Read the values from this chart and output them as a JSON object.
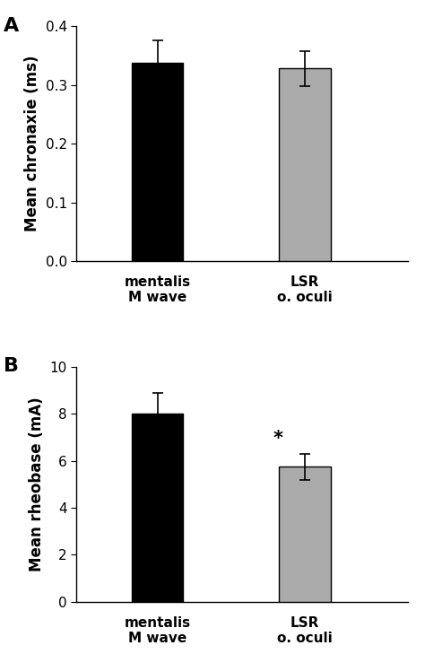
{
  "panel_A": {
    "categories": [
      "mentalis\nM wave",
      "LSR\no. oculi"
    ],
    "values": [
      0.338,
      0.328
    ],
    "errors": [
      0.038,
      0.03
    ],
    "bar_colors": [
      "#000000",
      "#aaaaaa"
    ],
    "ylabel": "Mean chronaxie (ms)",
    "ylim": [
      0,
      0.4
    ],
    "yticks": [
      0.0,
      0.1,
      0.2,
      0.3,
      0.4
    ],
    "label": "A"
  },
  "panel_B": {
    "categories": [
      "mentalis\nM wave",
      "LSR\no. oculi"
    ],
    "values": [
      8.0,
      5.75
    ],
    "errors": [
      0.9,
      0.55
    ],
    "bar_colors": [
      "#000000",
      "#aaaaaa"
    ],
    "ylabel": "Mean rheobase (mA)",
    "ylim": [
      0,
      10
    ],
    "yticks": [
      0,
      2,
      4,
      6,
      8,
      10
    ],
    "label": "B",
    "asterisk_index": 1
  },
  "bar_width": 0.35,
  "bar_positions": [
    1,
    2
  ],
  "xlim": [
    0.45,
    2.7
  ],
  "figure_bg": "#ffffff",
  "axes_bg": "#ffffff",
  "label_fontsize": 12,
  "tick_fontsize": 11,
  "panel_label_fontsize": 16,
  "xticklabel_fontsize": 11,
  "asterisk_fontsize": 15,
  "capsize": 4,
  "elinewidth": 1.2,
  "edgecolor": "#000000"
}
